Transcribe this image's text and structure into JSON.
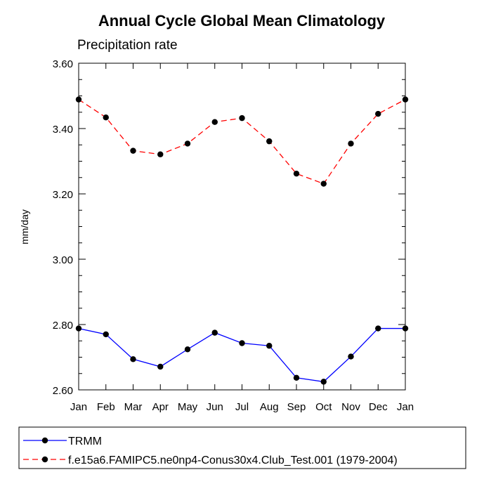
{
  "chart_data": {
    "type": "line",
    "title": "Annual Cycle Global Mean Climatology",
    "subtitle": "Precipitation rate",
    "xlabel": "",
    "ylabel": "mm/day",
    "categories": [
      "Jan",
      "Feb",
      "Mar",
      "Apr",
      "May",
      "Jun",
      "Jul",
      "Aug",
      "Sep",
      "Oct",
      "Nov",
      "Dec",
      "Jan"
    ],
    "yticks": [
      "3.60",
      "3.40",
      "3.20",
      "3.00",
      "2.80",
      "2.60"
    ],
    "ylim": [
      2.6,
      3.6
    ],
    "grid": false,
    "legend_position": "bottom",
    "series": [
      {
        "name": "TRMM",
        "color": "#0000ff",
        "line_style": "solid",
        "values": [
          2.788,
          2.77,
          2.694,
          2.671,
          2.724,
          2.775,
          2.743,
          2.735,
          2.637,
          2.625,
          2.702,
          2.788,
          2.788
        ]
      },
      {
        "name": "f.e15a6.FAMIPC5.ne0np4-Conus30x4.Club_Test.001 (1979-2004)",
        "color": "#ff0000",
        "line_style": "dashed",
        "values": [
          3.489,
          3.434,
          3.332,
          3.321,
          3.354,
          3.42,
          3.432,
          3.361,
          3.262,
          3.231,
          3.354,
          3.445,
          3.489
        ]
      }
    ]
  }
}
